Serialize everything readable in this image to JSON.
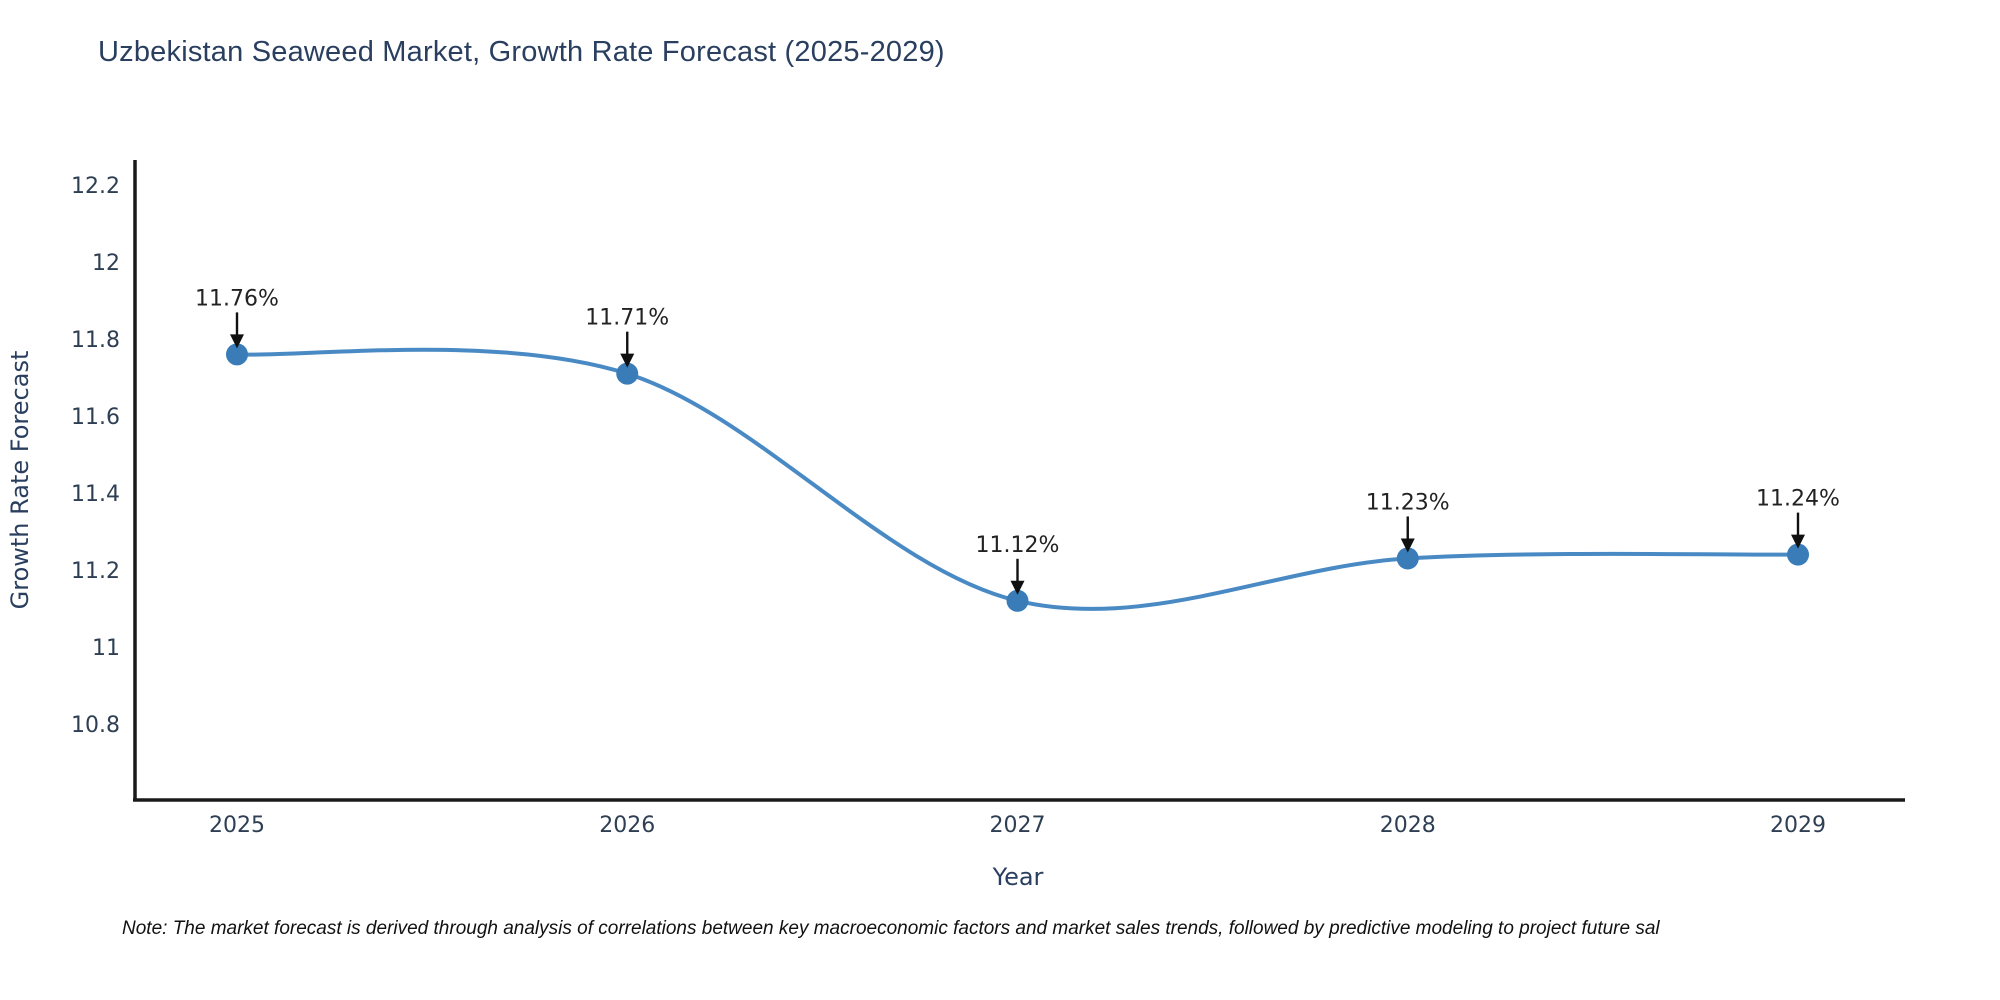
{
  "title": "Uzbekistan Seaweed Market, Growth Rate Forecast (2025-2029)",
  "note": "Note: The market forecast is derived through analysis of correlations between key macroeconomic factors and market sales trends, followed by predictive modeling to project future sal",
  "chart_data": {
    "type": "line",
    "line_shape": "spline",
    "title": "Uzbekistan Seaweed Market, Growth Rate Forecast (2025-2029)",
    "xlabel": "Year",
    "ylabel": "Growth Rate Forecast",
    "x": [
      "2025",
      "2026",
      "2027",
      "2028",
      "2029"
    ],
    "series": [
      {
        "name": "Growth Rate Forecast",
        "values": [
          11.76,
          11.71,
          11.12,
          11.23,
          11.24
        ]
      }
    ],
    "point_labels": [
      "11.76%",
      "11.71%",
      "11.12%",
      "11.23%",
      "11.24%"
    ],
    "y_ticks": [
      "12.2",
      "12",
      "11.8",
      "11.6",
      "11.4",
      "11.2",
      "11",
      "10.8"
    ],
    "ylim": [
      10.61,
      12.27
    ],
    "grid": false,
    "legend_position": "none",
    "colors": {
      "line": "#4a8ac4",
      "marker": "#3a7cb8",
      "axis": "#1a1a1a",
      "labels": "#2a3f5f",
      "annotation_text": "#222222",
      "arrow": "#111111",
      "background": "#ffffff"
    }
  }
}
